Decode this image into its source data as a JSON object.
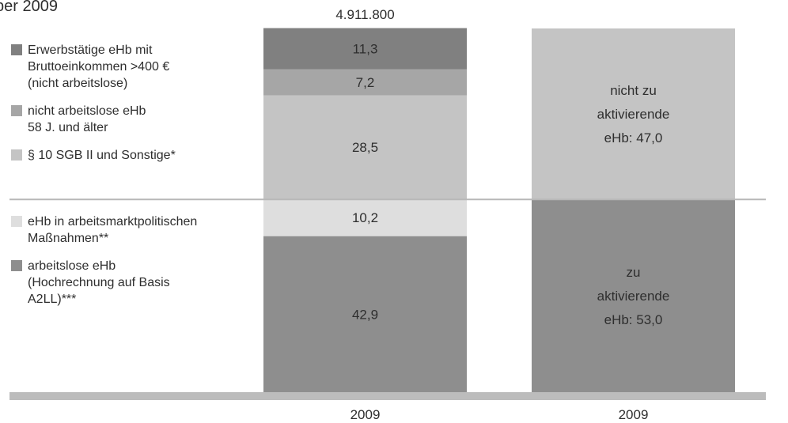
{
  "page": {
    "title_fragment": "ber 2009"
  },
  "chart_data": {
    "type": "bar",
    "stacked": true,
    "unit": "%",
    "total_label": "4.911.800",
    "categories": [
      "2009",
      "2009"
    ],
    "segment_colors": {
      "erwerbstaetige": "#808080",
      "nicht_arbeitslos_58": "#a6a6a6",
      "sgb": "#c4c4c4",
      "massnahmen": "#dedede",
      "arbeitslose": "#8e8e8e",
      "nicht_zu_aktivieren": "#c4c4c4",
      "zu_aktivieren": "#8e8e8e",
      "divider_line": "#b8b8b8",
      "baseline": "#bcbcbc"
    },
    "bar1": [
      {
        "id": "arbeitslose",
        "value": 42.9,
        "label": "42,9"
      },
      {
        "id": "massnahmen",
        "value": 10.2,
        "label": "10,2"
      },
      {
        "id": "sgb",
        "value": 28.5,
        "label": "28,5"
      },
      {
        "id": "nicht_arbeitslos_58",
        "value": 7.2,
        "label": "7,2"
      },
      {
        "id": "erwerbstaetige",
        "value": 11.3,
        "label": "11,3"
      }
    ],
    "bar2": [
      {
        "id": "zu_aktivieren",
        "value": 53.0,
        "lines": [
          "zu",
          "aktivierende",
          "eHb: 53,0"
        ]
      },
      {
        "id": "nicht_zu_aktivieren",
        "value": 47.0,
        "lines": [
          "nicht zu",
          "aktivierende",
          "eHb: 47,0"
        ]
      }
    ],
    "legend_top": [
      {
        "id": "erwerbstaetige",
        "lines": [
          "Erwerbstätige eHb mit",
          "Bruttoeinkommen >400 €",
          "(nicht arbeitslose)"
        ]
      },
      {
        "id": "nicht_arbeitslos_58",
        "lines": [
          "nicht arbeitslose eHb",
          "58 J. und älter"
        ]
      },
      {
        "id": "sgb",
        "lines": [
          "§ 10 SGB II und Sonstige*"
        ]
      }
    ],
    "legend_bottom": [
      {
        "id": "massnahmen",
        "lines": [
          "eHb in arbeitsmarktpolitischen",
          "Maßnahmen**"
        ]
      },
      {
        "id": "arbeitslose",
        "lines": [
          "arbeitslose eHb",
          "(Hochrechnung auf Basis",
          "A2LL)***"
        ]
      }
    ]
  }
}
